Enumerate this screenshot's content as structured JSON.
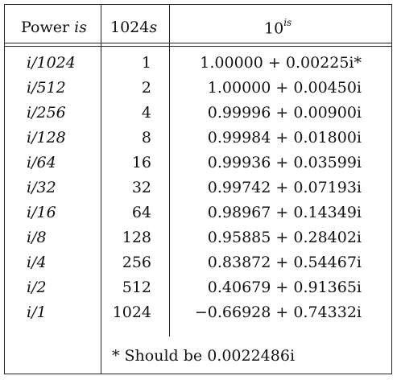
{
  "headers": {
    "power_label": "Power",
    "power_var": "is",
    "s_label": "1024",
    "s_var": "s",
    "exp_base": "10",
    "exp_sup": "is"
  },
  "rows": [
    {
      "power": "i/1024",
      "s": "1",
      "value": "1.00000 + 0.00225i*"
    },
    {
      "power": "i/512",
      "s": "2",
      "value": "1.00000 + 0.00450i"
    },
    {
      "power": "i/256",
      "s": "4",
      "value": "0.99996 + 0.00900i"
    },
    {
      "power": "i/128",
      "s": "8",
      "value": "0.99984 + 0.01800i"
    },
    {
      "power": "i/64",
      "s": "16",
      "value": "0.99936 + 0.03599i"
    },
    {
      "power": "i/32",
      "s": "32",
      "value": "0.99742 + 0.07193i"
    },
    {
      "power": "i/16",
      "s": "64",
      "value": "0.98967 + 0.14349i"
    },
    {
      "power": "i/8",
      "s": "128",
      "value": "0.95885 + 0.28402i"
    },
    {
      "power": "i/4",
      "s": "256",
      "value": "0.83872 + 0.54467i"
    },
    {
      "power": "i/2",
      "s": "512",
      "value": "0.40679 + 0.91365i"
    },
    {
      "power": "i/1",
      "s": "1024",
      "value": "−0.66928 + 0.74332i"
    }
  ],
  "footnote": "* Should be 0.0022486i"
}
